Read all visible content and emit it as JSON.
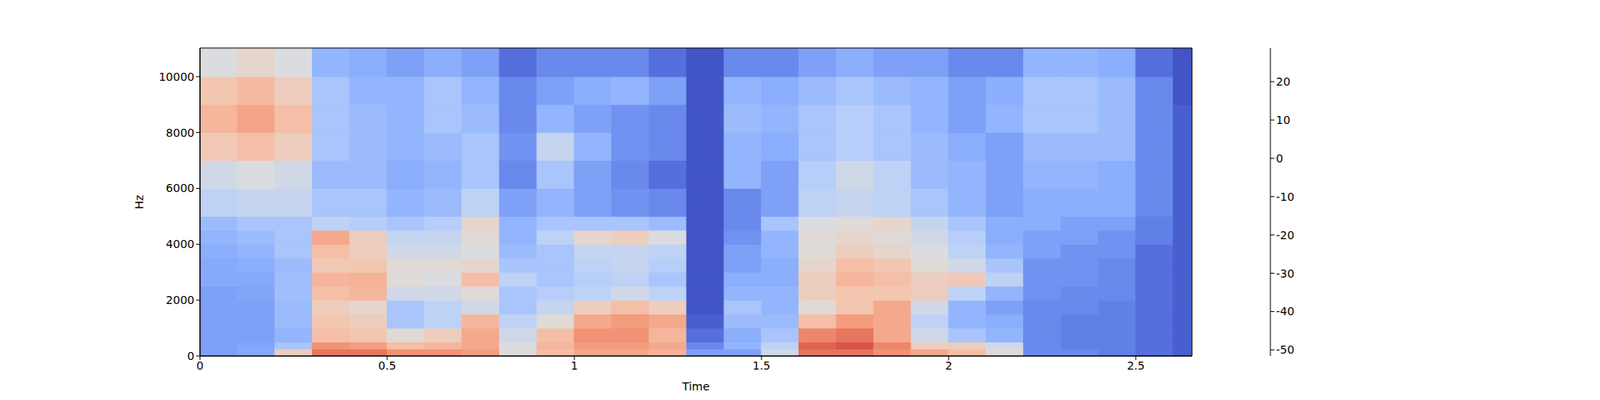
{
  "chart_data": {
    "type": "heatmap",
    "x_label": "Time",
    "y_label": "Hz",
    "x_edges": [
      0,
      0.1,
      0.2,
      0.3,
      0.4,
      0.5,
      0.6,
      0.7,
      0.8,
      0.9,
      1.0,
      1.1,
      1.2,
      1.3,
      1.4,
      1.5,
      1.6,
      1.7,
      1.8,
      1.9,
      2.0,
      2.1,
      2.2,
      2.3,
      2.4,
      2.5,
      2.6,
      2.65
    ],
    "y_edges": [
      0,
      250,
      500,
      1000,
      1500,
      2000,
      2500,
      3000,
      3500,
      4000,
      4500,
      5000,
      6000,
      7000,
      8000,
      9000,
      10000,
      11025
    ],
    "values": [
      [
        -35,
        -35,
        -35,
        -35,
        -35,
        -35,
        -33,
        -33,
        -32,
        -30,
        -28,
        -20,
        -15,
        -3,
        2,
        -2,
        -12
      ],
      [
        -33,
        -34,
        -35,
        -35,
        -35,
        -34,
        -33,
        -32,
        -30,
        -28,
        -25,
        -18,
        -12,
        0,
        6,
        1,
        -8
      ],
      [
        -5,
        -25,
        -30,
        -28,
        -28,
        -27,
        -27,
        -28,
        -25,
        -25,
        -25,
        -18,
        -15,
        -5,
        0,
        -5,
        -12
      ],
      [
        15,
        10,
        0,
        -2,
        -5,
        0,
        2,
        -3,
        0,
        5,
        -20,
        -25,
        -28,
        -25,
        -25,
        -25,
        -30
      ],
      [
        15,
        8,
        -2,
        -5,
        -8,
        2,
        3,
        -2,
        -5,
        -5,
        -22,
        -25,
        -28,
        -28,
        -28,
        -30,
        -32
      ],
      [
        10,
        0,
        -10,
        -25,
        -25,
        -15,
        -10,
        -10,
        -15,
        -18,
        -25,
        -30,
        -32,
        -30,
        -30,
        -30,
        -35
      ],
      [
        10,
        2,
        -5,
        -20,
        -20,
        -15,
        -12,
        -10,
        -15,
        -18,
        -22,
        -28,
        -30,
        -28,
        -25,
        -25,
        -32
      ],
      [
        8,
        5,
        5,
        2,
        -15,
        -10,
        0,
        -8,
        -12,
        -10,
        -8,
        -20,
        -25,
        -25,
        -28,
        -30,
        -35
      ],
      [
        -10,
        -12,
        -15,
        -20,
        -25,
        -25,
        -20,
        -25,
        -28,
        -30,
        -30,
        -35,
        -40,
        -38,
        -40,
        -40,
        -45
      ],
      [
        0,
        2,
        0,
        -10,
        -18,
        -22,
        -25,
        -25,
        -25,
        -20,
        -25,
        -30,
        -25,
        -18,
        -30,
        -35,
        -40
      ],
      [
        5,
        8,
        10,
        5,
        -5,
        -20,
        -22,
        -20,
        -18,
        -8,
        -25,
        -35,
        -35,
        -30,
        -35,
        -32,
        -40
      ],
      [
        5,
        8,
        10,
        8,
        0,
        -15,
        -20,
        -18,
        -18,
        -5,
        -25,
        -38,
        -40,
        -38,
        -38,
        -30,
        -40
      ],
      [
        3,
        5,
        2,
        5,
        -5,
        -20,
        -25,
        -22,
        -20,
        -12,
        -28,
        -40,
        -45,
        -40,
        -40,
        -35,
        -45
      ],
      [
        -35,
        -40,
        -45,
        -48,
        -50,
        -50,
        -50,
        -50,
        -50,
        -50,
        -50,
        -50,
        -50,
        -50,
        -50,
        -50,
        -50
      ],
      [
        -35,
        -30,
        -32,
        -28,
        -25,
        -30,
        -32,
        -35,
        -35,
        -38,
        -40,
        -40,
        -30,
        -30,
        -28,
        -30,
        -40
      ],
      [
        -15,
        -20,
        -25,
        -28,
        -30,
        -30,
        -32,
        -32,
        -30,
        -30,
        -25,
        -35,
        -35,
        -32,
        -30,
        -32,
        -40
      ],
      [
        15,
        18,
        12,
        0,
        -10,
        -5,
        -5,
        -8,
        -10,
        -10,
        -12,
        -20,
        -22,
        -25,
        -25,
        -28,
        -35
      ],
      [
        15,
        20,
        15,
        8,
        -2,
        -2,
        2,
        0,
        -5,
        -8,
        -10,
        -18,
        -15,
        -22,
        -22,
        -25,
        -32
      ],
      [
        10,
        12,
        5,
        5,
        5,
        -2,
        0,
        -2,
        -8,
        -10,
        -8,
        -20,
        -20,
        -25,
        -25,
        -28,
        -35
      ],
      [
        5,
        -5,
        -15,
        -20,
        -15,
        -5,
        -5,
        -10,
        -12,
        -15,
        -18,
        -25,
        -28,
        -28,
        -30,
        -30,
        -35
      ],
      [
        0,
        -5,
        -25,
        -30,
        -30,
        -20,
        -3,
        -15,
        -20,
        -22,
        -25,
        -30,
        -30,
        -32,
        -35,
        -35,
        -40
      ],
      [
        -10,
        -15,
        -30,
        -32,
        -35,
        -30,
        -20,
        -25,
        -30,
        -32,
        -32,
        -35,
        -35,
        -35,
        -30,
        -32,
        -40
      ],
      [
        -40,
        -40,
        -40,
        -40,
        -40,
        -38,
        -38,
        -38,
        -35,
        -35,
        -32,
        -32,
        -30,
        -28,
        -25,
        -25,
        -30
      ],
      [
        -40,
        -42,
        -42,
        -42,
        -40,
        -40,
        -38,
        -38,
        -38,
        -35,
        -35,
        -32,
        -30,
        -28,
        -25,
        -25,
        -30
      ],
      [
        -42,
        -42,
        -42,
        -42,
        -42,
        -40,
        -40,
        -40,
        -38,
        -38,
        -35,
        -32,
        -32,
        -28,
        -28,
        -28,
        -32
      ],
      [
        -45,
        -45,
        -45,
        -45,
        -45,
        -45,
        -45,
        -45,
        -45,
        -42,
        -42,
        -40,
        -40,
        -40,
        -40,
        -40,
        -45
      ],
      [
        -48,
        -48,
        -48,
        -48,
        -48,
        -48,
        -48,
        -48,
        -48,
        -48,
        -48,
        -48,
        -48,
        -48,
        -48,
        -50,
        -50
      ]
    ],
    "xlim": [
      0,
      2.65
    ],
    "ylim": [
      0,
      11025
    ],
    "xticks": [
      0,
      0.5,
      1,
      1.5,
      2,
      2.5
    ],
    "yticks": [
      0,
      2000,
      4000,
      6000,
      8000,
      10000
    ],
    "colorbar": {
      "range": [
        -51.6,
        28.8
      ],
      "ticks": [
        -50,
        -40,
        -30,
        -20,
        -10,
        0,
        10,
        20
      ]
    }
  }
}
